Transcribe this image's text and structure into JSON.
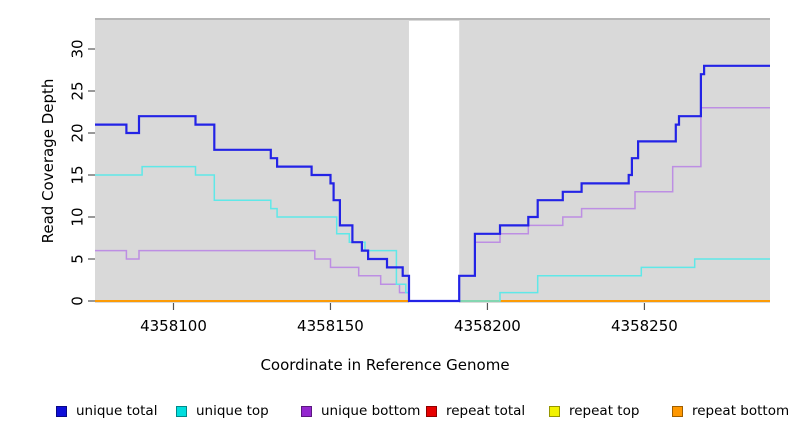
{
  "figure": {
    "background": "#ffffff",
    "panel": {
      "bg": "#d9d9d9",
      "top_edge_color": "#ababab"
    },
    "gap_region": {
      "start": 4358175,
      "end": 4358191,
      "color": "#ffffff"
    }
  },
  "chart_data": {
    "type": "line",
    "subtype": "step-post",
    "title": "",
    "xlabel": "Coordinate in Reference Genome",
    "ylabel": "Read Coverage Depth",
    "xlim": [
      4358075,
      4358290
    ],
    "ylim": [
      0,
      33
    ],
    "x_ticks": [
      "4358100",
      "4358150",
      "4358200",
      "4358250"
    ],
    "x_tick_values": [
      4358100,
      4358150,
      4358200,
      4358250
    ],
    "y_ticks": [
      "0",
      "5",
      "10",
      "15",
      "20",
      "25",
      "30"
    ],
    "y_tick_values": [
      0,
      5,
      10,
      15,
      20,
      25,
      30
    ],
    "grid": "off",
    "legend_position": "bottom",
    "series": [
      {
        "name": "repeat total",
        "color": "#e60000",
        "lw": 1.4,
        "points": [
          [
            4358075,
            0
          ]
        ]
      },
      {
        "name": "repeat top",
        "color": "#f2f200",
        "lw": 1.4,
        "points": [
          [
            4358075,
            0
          ]
        ]
      },
      {
        "name": "repeat bottom",
        "color": "#ff9800",
        "lw": 1.8,
        "points": [
          [
            4358075,
            0
          ]
        ]
      },
      {
        "name": "unique bottom",
        "color": "#bd8ee3",
        "lw": 1.5,
        "points": [
          [
            4358075,
            6
          ],
          [
            4358085,
            5
          ],
          [
            4358089,
            6
          ],
          [
            4358145,
            5
          ],
          [
            4358150,
            4
          ],
          [
            4358159,
            3
          ],
          [
            4358166,
            2
          ],
          [
            4358172,
            1
          ],
          [
            4358175,
            0
          ],
          [
            4358191,
            3
          ],
          [
            4358196,
            7
          ],
          [
            4358204,
            8
          ],
          [
            4358213,
            9
          ],
          [
            4358224,
            10
          ],
          [
            4358230,
            11
          ],
          [
            4358247,
            13
          ],
          [
            4358259,
            16
          ],
          [
            4358268,
            23
          ]
        ]
      },
      {
        "name": "unique top",
        "color": "#5fe8e8",
        "lw": 1.5,
        "points": [
          [
            4358075,
            15
          ],
          [
            4358090,
            16
          ],
          [
            4358107,
            15
          ],
          [
            4358113,
            12
          ],
          [
            4358131,
            11
          ],
          [
            4358133,
            10
          ],
          [
            4358152,
            8
          ],
          [
            4358156,
            7
          ],
          [
            4358161,
            6
          ],
          [
            4358171,
            2
          ],
          [
            4358174,
            1
          ],
          [
            4358175,
            0
          ],
          [
            4358204,
            1
          ],
          [
            4358216,
            3
          ],
          [
            4358249,
            4
          ],
          [
            4358266,
            5
          ]
        ]
      },
      {
        "name": "unique total",
        "color": "#2323e6",
        "lw": 2.2,
        "points": [
          [
            4358075,
            21
          ],
          [
            4358085,
            20
          ],
          [
            4358089,
            22
          ],
          [
            4358107,
            21
          ],
          [
            4358113,
            18
          ],
          [
            4358131,
            17
          ],
          [
            4358133,
            16
          ],
          [
            4358144,
            15
          ],
          [
            4358150,
            14
          ],
          [
            4358151,
            12
          ],
          [
            4358153,
            9
          ],
          [
            4358157,
            7
          ],
          [
            4358160,
            6
          ],
          [
            4358162,
            5
          ],
          [
            4358168,
            4
          ],
          [
            4358173,
            3
          ],
          [
            4358175,
            0
          ],
          [
            4358191,
            3
          ],
          [
            4358196,
            8
          ],
          [
            4358204,
            9
          ],
          [
            4358213,
            10
          ],
          [
            4358216,
            12
          ],
          [
            4358224,
            13
          ],
          [
            4358230,
            14
          ],
          [
            4358245,
            15
          ],
          [
            4358246,
            17
          ],
          [
            4358248,
            19
          ],
          [
            4358260,
            21
          ],
          [
            4358261,
            22
          ],
          [
            4358268,
            27
          ],
          [
            4358269,
            28
          ]
        ]
      }
    ],
    "legend": {
      "entries": [
        {
          "label": "unique total",
          "color": "#0f0fd9"
        },
        {
          "label": "unique top",
          "color": "#00dede"
        },
        {
          "label": "unique bottom",
          "color": "#9427cf"
        },
        {
          "label": "repeat total",
          "color": "#e60000"
        },
        {
          "label": "repeat top",
          "color": "#f2f200"
        },
        {
          "label": "repeat bottom",
          "color": "#ff9800"
        }
      ]
    }
  }
}
